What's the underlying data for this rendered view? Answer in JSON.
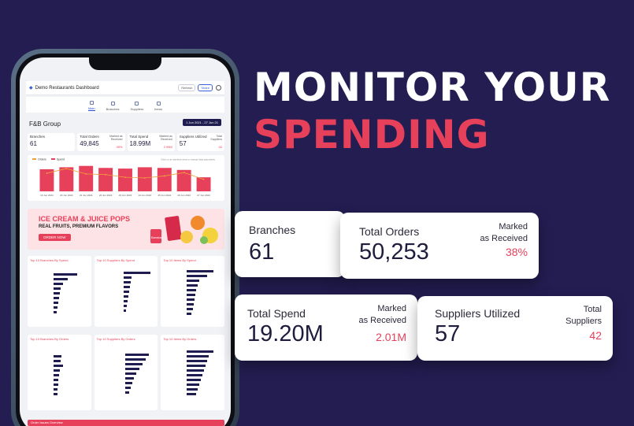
{
  "headline": {
    "line1": "MONITOR YOUR",
    "line2": "SPENDING"
  },
  "colors": {
    "background": "#241d52",
    "accent": "#e7405a",
    "navy": "#1f1d4f"
  },
  "cards": {
    "branches": {
      "label": "Branches",
      "value": "61"
    },
    "total_orders": {
      "label": "Total Orders",
      "value": "50,253",
      "side_label_1": "Marked",
      "side_label_2": "as Received",
      "side_value": "38%"
    },
    "total_spend": {
      "label": "Total Spend",
      "value": "19.20M",
      "side_label_1": "Marked",
      "side_label_2": "as Received",
      "side_value": "2.01M"
    },
    "suppliers": {
      "label": "Suppliers Utilized",
      "value": "57",
      "side_label_1": "Total",
      "side_label_2": "Suppliers",
      "side_value": "42"
    }
  },
  "phone": {
    "app_title": "Demo Restaurants Dashboard",
    "app_buttons": {
      "refresh": "Refresh",
      "share": "Share"
    },
    "nav": [
      {
        "label": "Main",
        "icon": "grid-icon",
        "active": true
      },
      {
        "label": "Branches",
        "icon": "fork-knife-icon",
        "active": false
      },
      {
        "label": "Suppliers",
        "icon": "truck-icon",
        "active": false
      },
      {
        "label": "Items",
        "icon": "tag-icon",
        "active": false
      }
    ],
    "group": "F&B Group",
    "date_range": "1 Jun 2021 - 27 Jun 21",
    "kpis": [
      {
        "title": "Branches",
        "value": "61",
        "side": "",
        "side_value": ""
      },
      {
        "title": "Total Orders",
        "value": "49,845",
        "side": "Marked as Received",
        "side_value": "39%"
      },
      {
        "title": "Total Spend",
        "value": "18.99M",
        "side": "Marked as Received",
        "side_value": "2.99M"
      },
      {
        "title": "Suppliers Utilized",
        "value": "57",
        "side": "Total Suppliers",
        "side_value": "42"
      }
    ],
    "chart": {
      "legend_orders": "Orders",
      "legend_spend": "Spend",
      "hint": "Click on an attribute area to change data granularity",
      "chart_data": {
        "type": "bar",
        "categories": [
          "19 Jun 2024",
          "20 Jun 2024",
          "21 Jun 2024",
          "22 Jun 2024",
          "23 Jun 2024",
          "24 Jun 2024",
          "25 Jun 2024",
          "26 Jun 2024",
          "27 Jun 2024"
        ],
        "series": [
          {
            "name": "Spend",
            "values": [
              33,
              36,
              38,
              35,
              34,
              36,
              35,
              32,
              21
            ]
          },
          {
            "name": "Orders",
            "values": [
              27,
              34,
              26,
              25,
              21,
              20,
              23,
              28,
              18
            ]
          }
        ]
      }
    },
    "banner": {
      "title": "ICE CREAM & JUICE POPS",
      "subtitle": "REAL FRUITS, PREMIUM FLAVORS",
      "button": "ORDER NOW",
      "brand": "Barakat"
    },
    "panels_row1": [
      "Top 10 Branches By Spend",
      "Top 10 Suppliers By Spend",
      "Top 10 Items By Spend"
    ],
    "panels_row2": [
      "Top 10 Branches By Orders",
      "Top 10 Suppliers By Orders",
      "Top 10 Items By Orders"
    ],
    "order_issues": "Order Issues Overview"
  }
}
